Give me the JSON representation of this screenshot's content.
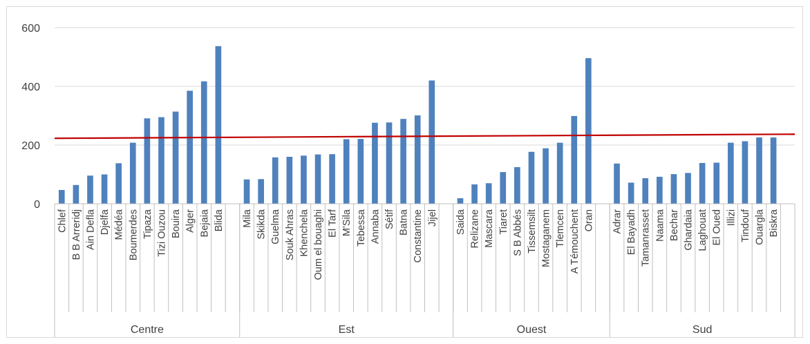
{
  "chart_data": {
    "type": "bar",
    "title": "",
    "xlabel": "",
    "ylabel": "",
    "ylim": [
      0,
      600
    ],
    "yticks": [
      0,
      200,
      400,
      600
    ],
    "grid": true,
    "legend": "none",
    "bar_color": "#4f81bd",
    "trend_color": "#c00000",
    "grid_color": "#d9d9d9",
    "axis_color": "#bfbfbf",
    "groups": [
      {
        "name": "Centre",
        "categories": [
          "Chlef",
          "B B Arreridj",
          "Ain Defla",
          "Djelfa",
          "Médéa",
          "Boumerdes",
          "Tipaza",
          "Tizi Ouzou",
          "Bouira",
          "Alger",
          "Bejaia",
          "Blida"
        ],
        "values": [
          47,
          64,
          96,
          100,
          138,
          208,
          291,
          295,
          314,
          385,
          417,
          537
        ]
      },
      {
        "name": "Est",
        "categories": [
          "Mila",
          "Skikda",
          "Guelma",
          "Souk Ahras",
          "Khenchela",
          "Oum el bouaghi",
          "El Tarf",
          "M'Sila",
          "Tebessa",
          "Annaba",
          "Sétif",
          "Batna",
          "Constantine",
          "Jijel"
        ],
        "values": [
          83,
          84,
          158,
          160,
          164,
          168,
          169,
          220,
          221,
          276,
          277,
          289,
          301,
          420
        ]
      },
      {
        "name": "Ouest",
        "categories": [
          "Saida",
          "Relizane",
          "Mascara",
          "Tiaret",
          "S B Abbés",
          "Tissemsilt",
          "Mostaganem",
          "Tlemcen",
          "A Témouchent",
          "Oran"
        ],
        "values": [
          19,
          66,
          70,
          108,
          125,
          177,
          189,
          208,
          299,
          496
        ]
      },
      {
        "name": "Sud",
        "categories": [
          "Adrar",
          "El Bayadh",
          "Tamanrasset",
          "Naama",
          "Bechar",
          "Ghardaia",
          "Laghouat",
          "El Oued",
          "Illizi",
          "Tindouf",
          "Ouargla",
          "Biskra"
        ],
        "values": [
          137,
          72,
          87,
          92,
          101,
          105,
          139,
          140,
          208,
          213,
          226,
          226
        ]
      }
    ],
    "trendline": {
      "type": "linear",
      "start_value": 223,
      "end_value": 237
    }
  }
}
